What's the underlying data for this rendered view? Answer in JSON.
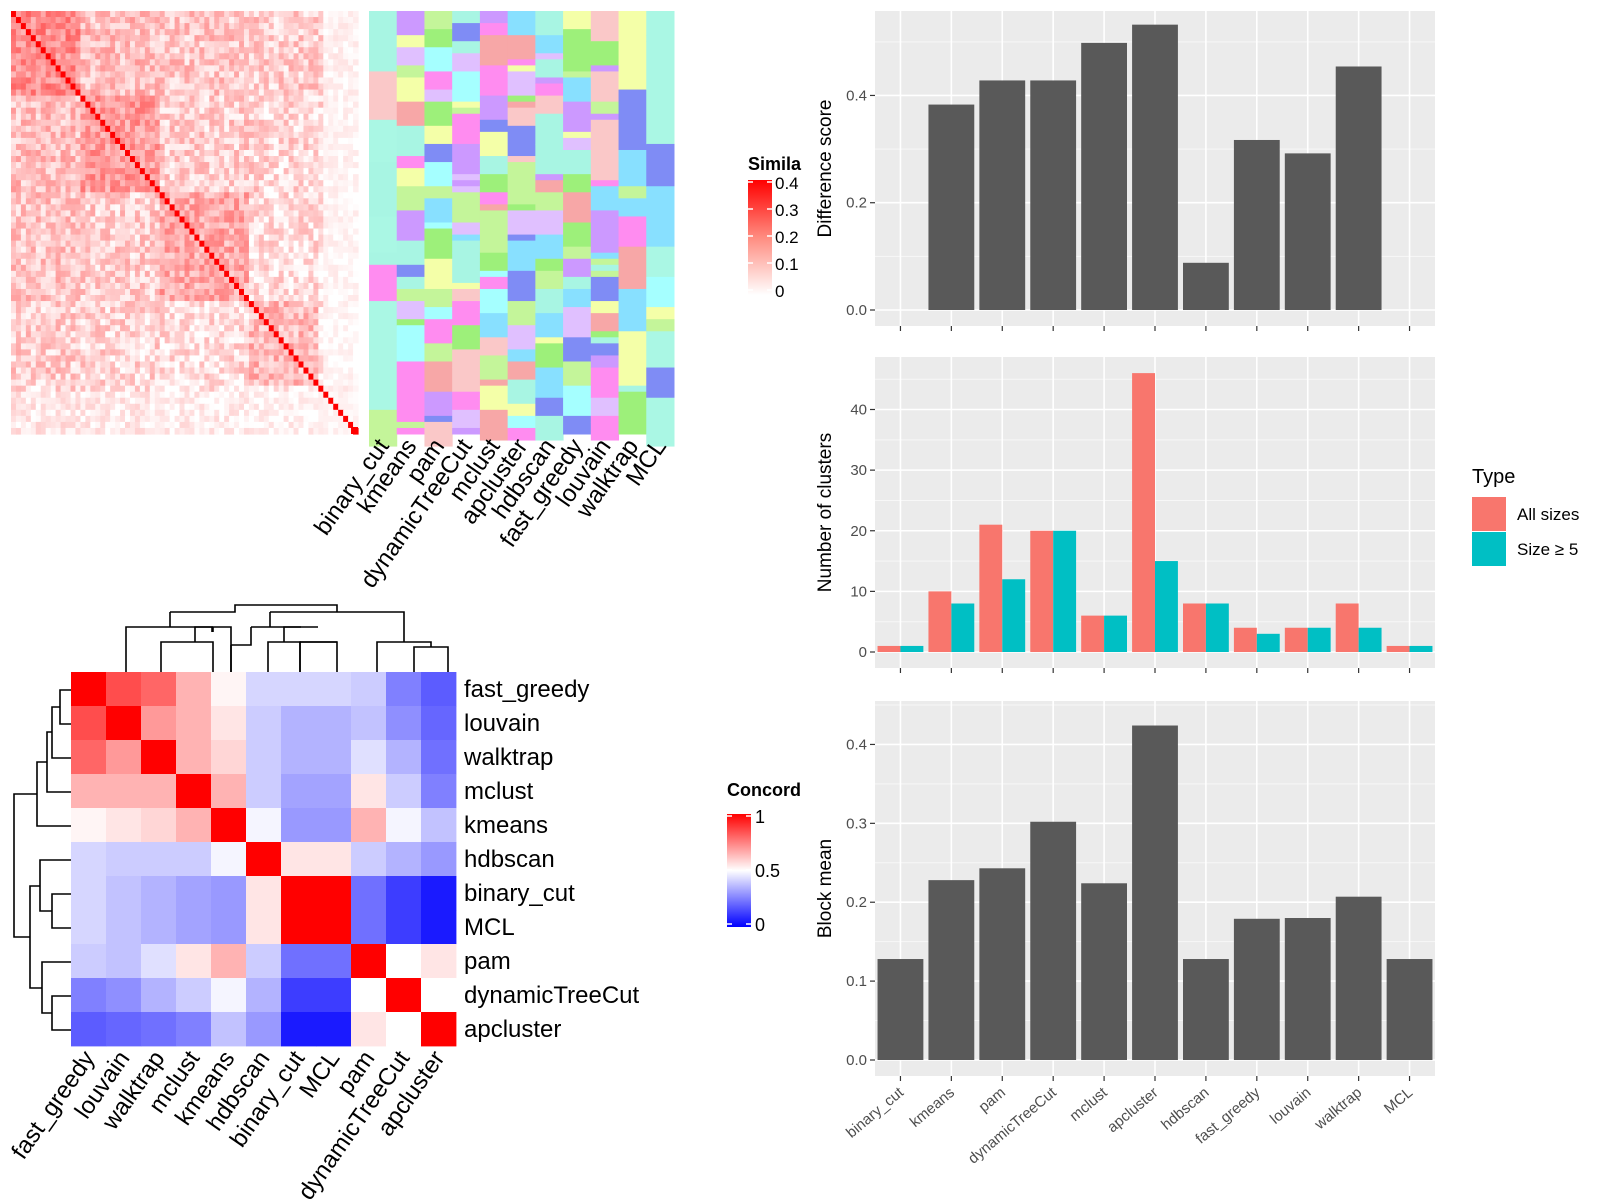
{
  "methods_order": [
    "binary_cut",
    "kmeans",
    "pam",
    "dynamicTreeCut",
    "mclust",
    "apcluster",
    "hdbscan",
    "fast_greedy",
    "louvain",
    "walktrap",
    "MCL"
  ],
  "top_left_heatmap": {
    "legend_title": "Simila",
    "legend_ticks": [
      "0.4",
      "0.3",
      "0.2",
      "0.1",
      "0"
    ],
    "colors": {
      "high": "#ff0000",
      "low": "#ffffff"
    },
    "method_labels": [
      "binary_cut",
      "kmeans",
      "pam",
      "dynamicTreeCut",
      "mclust",
      "apcluster",
      "hdbscan",
      "fast_greedy",
      "louvain",
      "walktrap",
      "MCL"
    ]
  },
  "concordance_heatmap": {
    "legend_title": "Concord",
    "legend_ticks": [
      "1",
      "0.5",
      "0"
    ],
    "colors": {
      "high": "#ff0000",
      "mid": "#ffffff",
      "low": "#0000ff"
    },
    "order": [
      "fast_greedy",
      "louvain",
      "walktrap",
      "mclust",
      "kmeans",
      "hdbscan",
      "binary_cut",
      "MCL",
      "pam",
      "dynamicTreeCut",
      "apcluster"
    ],
    "matrix": [
      [
        1.0,
        0.85,
        0.8,
        0.65,
        0.52,
        0.42,
        0.42,
        0.42,
        0.4,
        0.25,
        0.18
      ],
      [
        0.85,
        1.0,
        0.7,
        0.65,
        0.55,
        0.4,
        0.35,
        0.35,
        0.38,
        0.28,
        0.2
      ],
      [
        0.8,
        0.7,
        1.0,
        0.65,
        0.58,
        0.4,
        0.35,
        0.35,
        0.44,
        0.35,
        0.22
      ],
      [
        0.65,
        0.65,
        0.65,
        1.0,
        0.65,
        0.4,
        0.32,
        0.32,
        0.55,
        0.4,
        0.25
      ],
      [
        0.52,
        0.55,
        0.58,
        0.65,
        1.0,
        0.48,
        0.3,
        0.3,
        0.65,
        0.48,
        0.38
      ],
      [
        0.42,
        0.4,
        0.4,
        0.4,
        0.48,
        1.0,
        0.55,
        0.55,
        0.4,
        0.35,
        0.3
      ],
      [
        0.42,
        0.38,
        0.35,
        0.32,
        0.3,
        0.55,
        1.0,
        1.0,
        0.22,
        0.12,
        0.05
      ],
      [
        0.42,
        0.38,
        0.35,
        0.32,
        0.3,
        0.55,
        1.0,
        1.0,
        0.22,
        0.12,
        0.05
      ],
      [
        0.4,
        0.38,
        0.44,
        0.55,
        0.65,
        0.4,
        0.22,
        0.22,
        1.0,
        0.5,
        0.55
      ],
      [
        0.25,
        0.28,
        0.35,
        0.4,
        0.48,
        0.35,
        0.12,
        0.12,
        0.5,
        1.0,
        0.5
      ],
      [
        0.18,
        0.2,
        0.22,
        0.25,
        0.38,
        0.3,
        0.05,
        0.05,
        0.55,
        0.5,
        1.0
      ]
    ]
  },
  "chart_data": [
    {
      "type": "bar",
      "ylabel": "Difference score",
      "categories": [
        "binary_cut",
        "kmeans",
        "pam",
        "dynamicTreeCut",
        "mclust",
        "apcluster",
        "hdbscan",
        "fast_greedy",
        "louvain",
        "walktrap",
        "MCL"
      ],
      "values": [
        0,
        0.383,
        0.428,
        0.428,
        0.498,
        0.532,
        0.088,
        0.317,
        0.292,
        0.454,
        0
      ],
      "ylim": [
        0,
        0.55
      ],
      "yticks": [
        "0.0",
        "0.2",
        "0.4"
      ],
      "bar_color": "#595959"
    },
    {
      "type": "bar",
      "ylabel": "Number of clusters",
      "categories": [
        "binary_cut",
        "kmeans",
        "pam",
        "dynamicTreeCut",
        "mclust",
        "apcluster",
        "hdbscan",
        "fast_greedy",
        "louvain",
        "walktrap",
        "MCL"
      ],
      "series": [
        {
          "name": "All sizes",
          "color": "#F8766D",
          "values": [
            1,
            10,
            21,
            20,
            6,
            46,
            8,
            4,
            4,
            8,
            1
          ]
        },
        {
          "name": "Size ≥ 5",
          "color": "#00BFC4",
          "values": [
            1,
            8,
            12,
            20,
            6,
            15,
            8,
            3,
            4,
            4,
            1
          ]
        }
      ],
      "ylim": [
        0,
        48
      ],
      "yticks": [
        "0",
        "10",
        "20",
        "30",
        "40"
      ],
      "legend_title": "Type",
      "legend_position": "right"
    },
    {
      "type": "bar",
      "ylabel": "Block mean",
      "categories": [
        "binary_cut",
        "kmeans",
        "pam",
        "dynamicTreeCut",
        "mclust",
        "apcluster",
        "hdbscan",
        "fast_greedy",
        "louvain",
        "walktrap",
        "MCL"
      ],
      "values": [
        0.128,
        0.228,
        0.243,
        0.302,
        0.224,
        0.424,
        0.128,
        0.179,
        0.18,
        0.207,
        0.128
      ],
      "ylim": [
        0,
        0.45
      ],
      "yticks": [
        "0.0",
        "0.1",
        "0.2",
        "0.3",
        "0.4"
      ],
      "bar_color": "#595959"
    }
  ]
}
